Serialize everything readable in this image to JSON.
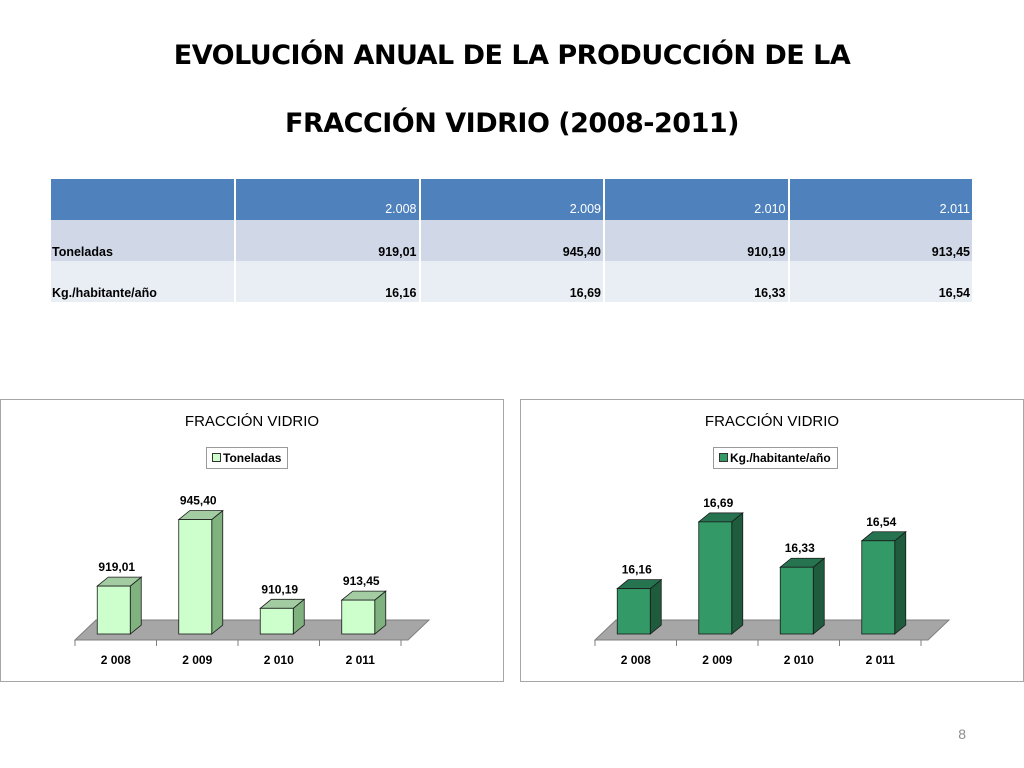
{
  "slide": {
    "title_line1": "EVOLUCIÓN ANUAL DE LA PRODUCCIÓN DE LA",
    "title_line2": "FRACCIÓN VIDRIO (2008-2011)",
    "page_number": "8"
  },
  "table": {
    "header": [
      "",
      "2.008",
      "2.009",
      "2.010",
      "2.011"
    ],
    "rows": [
      {
        "label": "Toneladas",
        "values": [
          "919,01",
          "945,40",
          "910,19",
          "913,45"
        ]
      },
      {
        "label": "Kg./habitante/año",
        "values": [
          "16,16",
          "16,69",
          "16,33",
          "16,54"
        ]
      }
    ]
  },
  "chart_data": [
    {
      "type": "bar",
      "title": "FRACCIÓN VIDRIO",
      "categories": [
        "2 008",
        "2 009",
        "2 010",
        "2 011"
      ],
      "series": [
        {
          "name": "Toneladas",
          "values": [
            919.01,
            945.4,
            910.19,
            913.45
          ]
        }
      ],
      "data_labels": [
        "919,01",
        "945,40",
        "910,19",
        "913,45"
      ],
      "ylim": [
        900,
        950
      ],
      "legend": "top-center",
      "grid": false,
      "three_d": true,
      "colors": {
        "front": "#ccffcc",
        "side": "#7fb27f",
        "top": "#a3cca3",
        "floor": "#a6a6a6"
      }
    },
    {
      "type": "bar",
      "title": "FRACCIÓN VIDRIO",
      "categories": [
        "2 008",
        "2 009",
        "2 010",
        "2 011"
      ],
      "series": [
        {
          "name": "Kg./habitante/año",
          "values": [
            16.16,
            16.69,
            16.33,
            16.54
          ]
        }
      ],
      "data_labels": [
        "16,16",
        "16,69",
        "16,33",
        "16,54"
      ],
      "ylim": [
        15.8,
        16.8
      ],
      "legend": "top-center",
      "grid": false,
      "three_d": true,
      "colors": {
        "front": "#339966",
        "side": "#1f5c3d",
        "top": "#267350",
        "floor": "#a6a6a6"
      }
    }
  ]
}
